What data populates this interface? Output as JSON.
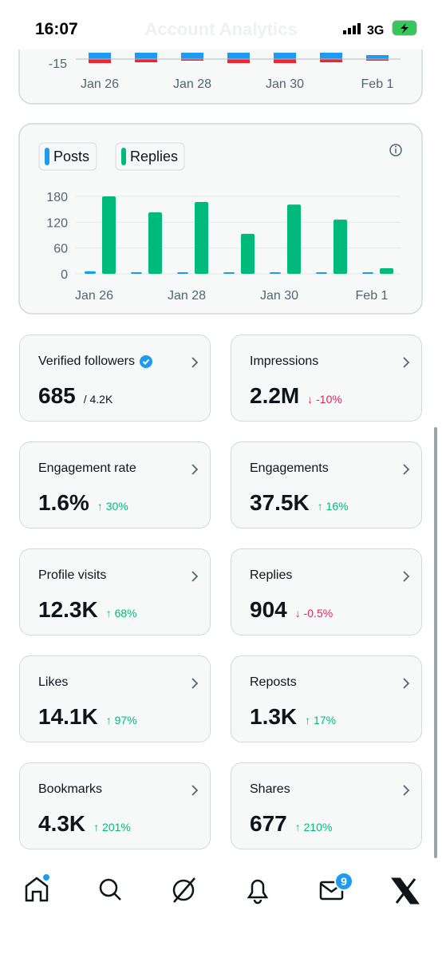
{
  "status_bar": {
    "time": "16:07",
    "network": "3G"
  },
  "header": {
    "title": "Account Analytics"
  },
  "chart_data": [
    {
      "type": "bar",
      "categories": [
        "Jan 26",
        null,
        "Jan 28",
        null,
        "Jan 30",
        null,
        "Feb 1"
      ],
      "yticks": [
        -15
      ]
    },
    {
      "type": "bar",
      "categories": [
        "Jan 26",
        null,
        "Jan 28",
        null,
        "Jan 30",
        null,
        "Feb 1"
      ],
      "series": [
        {
          "name": "Posts",
          "color": "#1d9bf0",
          "values": [
            6,
            3,
            3,
            3,
            2,
            1,
            1
          ]
        },
        {
          "name": "Replies",
          "color": "#00ba7c",
          "values": [
            180,
            143,
            167,
            93,
            161,
            126,
            13
          ]
        }
      ],
      "ylim": [
        0,
        180
      ],
      "yticks": [
        0,
        60,
        120,
        180
      ]
    }
  ],
  "tiles": [
    {
      "label": "Verified followers",
      "value": "685",
      "total": "/ 4.2K"
    },
    {
      "label": "Impressions",
      "value": "2.2M",
      "change": "-10%"
    },
    {
      "label": "Engagement rate",
      "value": "1.6%",
      "change": "30%"
    },
    {
      "label": "Engagements",
      "value": "37.5K",
      "change": "16%"
    },
    {
      "label": "Profile visits",
      "value": "12.3K",
      "change": "68%"
    },
    {
      "label": "Replies",
      "value": "904",
      "change": "-0.5%"
    },
    {
      "label": "Likes",
      "value": "14.1K",
      "change": "97%"
    },
    {
      "label": "Reposts",
      "value": "1.3K",
      "change": "17%"
    },
    {
      "label": "Bookmarks",
      "value": "4.3K",
      "change": "201%"
    },
    {
      "label": "Shares",
      "value": "677",
      "change": "210%"
    }
  ],
  "nav": {
    "badge": "9"
  }
}
